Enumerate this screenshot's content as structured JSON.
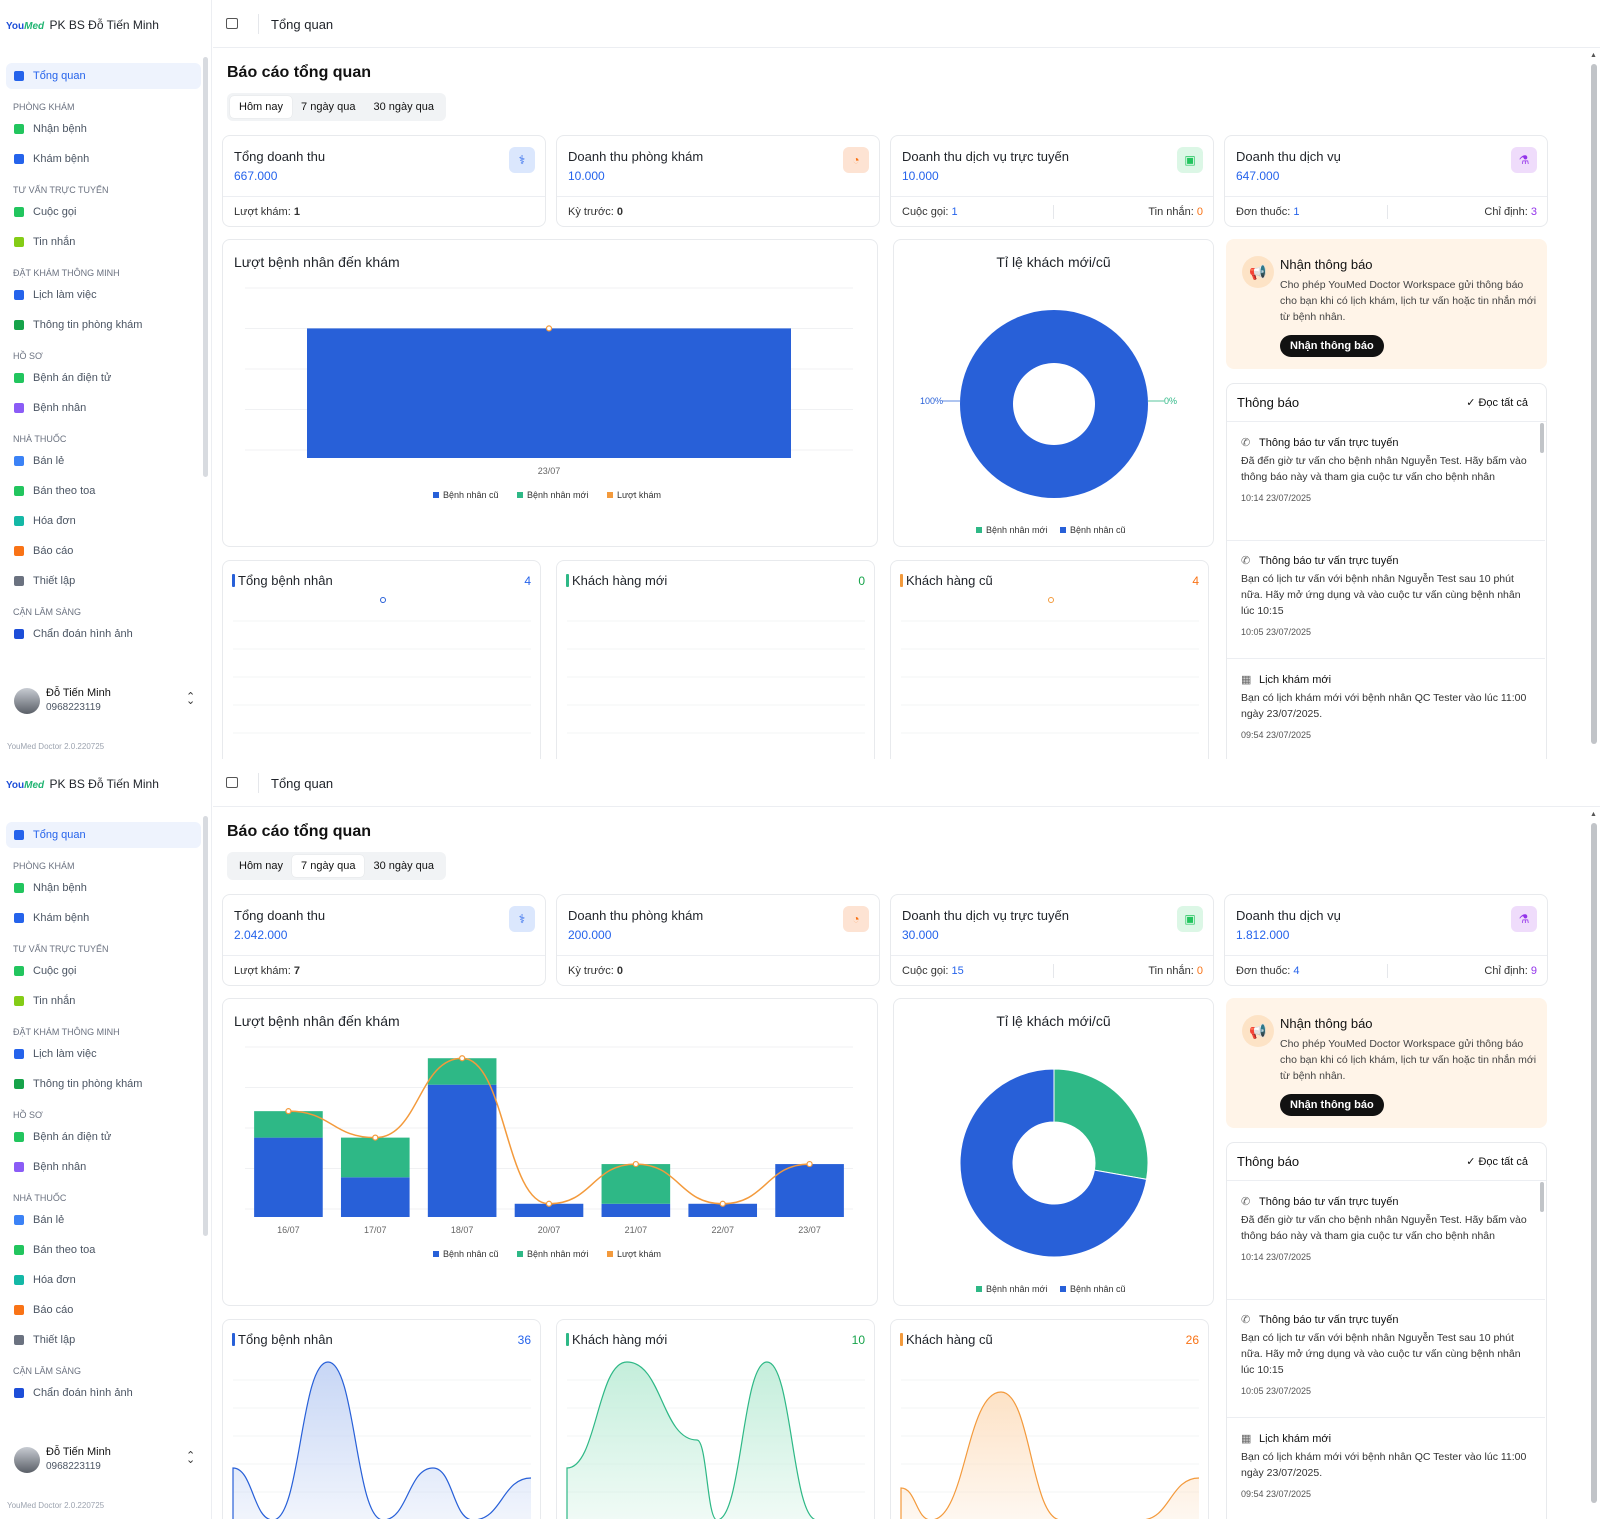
{
  "sidebar": {
    "brand_you": "You",
    "brand_med": "Med",
    "clinic": "PK BS Đỗ Tiến Minh",
    "active_item": "Tổng quan",
    "sections": [
      {
        "title": "",
        "items": [
          {
            "label": "Tổng quan",
            "icon": "dashboard-icon",
            "color": "#2563eb"
          }
        ]
      },
      {
        "title": "PHÒNG KHÁM",
        "items": [
          {
            "label": "Nhận bệnh",
            "icon": "patient-receive-icon",
            "color": "#22c55e"
          },
          {
            "label": "Khám bệnh",
            "icon": "stethoscope-icon",
            "color": "#2563eb"
          }
        ]
      },
      {
        "title": "TƯ VẤN TRỰC TUYẾN",
        "items": [
          {
            "label": "Cuộc gọi",
            "icon": "video-call-icon",
            "color": "#22c55e"
          },
          {
            "label": "Tin nhắn",
            "icon": "message-icon",
            "color": "#84cc16"
          }
        ]
      },
      {
        "title": "ĐẶT KHÁM THÔNG MINH",
        "items": [
          {
            "label": "Lịch làm việc",
            "icon": "calendar-icon",
            "color": "#2563eb"
          },
          {
            "label": "Thông tin phòng khám",
            "icon": "clinic-info-icon",
            "color": "#16a34a"
          }
        ]
      },
      {
        "title": "HỒ SƠ",
        "items": [
          {
            "label": "Bệnh án điện tử",
            "icon": "medical-record-icon",
            "color": "#22c55e"
          },
          {
            "label": "Bệnh nhân",
            "icon": "user-icon",
            "color": "#8b5cf6"
          }
        ]
      },
      {
        "title": "NHÀ THUỐC",
        "items": [
          {
            "label": "Bán lẻ",
            "icon": "pill-icon",
            "color": "#3b82f6"
          },
          {
            "label": "Bán theo toa",
            "icon": "prescription-icon",
            "color": "#22c55e"
          },
          {
            "label": "Hóa đơn",
            "icon": "invoice-icon",
            "color": "#14b8a6"
          },
          {
            "label": "Báo cáo",
            "icon": "report-icon",
            "color": "#f97316"
          },
          {
            "label": "Thiết lập",
            "icon": "gear-icon",
            "color": "#6b7280"
          }
        ]
      },
      {
        "title": "CẬN LÂM SÀNG",
        "items": [
          {
            "label": "Chẩn đoán hình ảnh",
            "icon": "imaging-icon",
            "color": "#1d4ed8"
          }
        ]
      }
    ],
    "user": {
      "name": "Đỗ Tiến Minh",
      "phone": "0968223119"
    },
    "version": "YouMed Doctor 2.0.220725"
  },
  "header": {
    "title": "Tổng quan"
  },
  "page": {
    "title": "Báo cáo tổng quan",
    "tabs": [
      "Hôm nay",
      "7 ngày qua",
      "30 ngày qua"
    ]
  },
  "kpi_labels": {
    "total_revenue": "Tổng doanh thu",
    "clinic_revenue": "Doanh thu phòng khám",
    "online_revenue": "Doanh thu dịch vụ trực tuyến",
    "service_revenue": "Doanh thu dịch vụ",
    "visits": "Lượt khám:",
    "previous": "Kỳ trước:",
    "calls": "Cuộc gọi:",
    "messages": "Tin nhắn:",
    "prescriptions": "Đơn thuốc:",
    "orders": "Chỉ định:"
  },
  "charts": {
    "visits_title": "Lượt bệnh nhân đến khám",
    "ratio_title": "Tỉ lệ khách mới/cũ",
    "legend_old": "Bệnh nhân cũ",
    "legend_new": "Bệnh nhân mới",
    "legend_visits": "Lượt khám"
  },
  "mini_labels": {
    "total_patients": "Tổng bệnh nhân",
    "new_customers": "Khách hàng mới",
    "old_customers": "Khách hàng cũ"
  },
  "colors": {
    "old": "#2860d8",
    "new": "#2eb886",
    "visits": "#f39a3c",
    "accent": "#2563eb"
  },
  "notify_cta": {
    "title": "Nhận thông báo",
    "desc": "Cho phép YouMed Doctor Workspace gửi thông báo cho bạn khi có lịch khám, lịch tư vấn hoặc tin nhắn mới từ bệnh nhân.",
    "button": "Nhận thông báo"
  },
  "notifications": {
    "title": "Thông báo",
    "read_all": "✓ Đọc tất cả",
    "items": [
      {
        "icon": "phone-icon",
        "title": "Thông báo tư vấn trực tuyến",
        "desc": "Đã đến giờ tư vấn cho bệnh nhân Nguyễn Test. Hãy bấm vào thông báo này và tham gia cuộc tư vấn cho bệnh nhân",
        "time": "10:14 23/07/2025"
      },
      {
        "icon": "phone-icon",
        "title": "Thông báo tư vấn trực tuyến",
        "desc": "Bạn có lịch tư vấn với bệnh nhân Nguyễn Test sau 10 phút nữa. Hãy mở ứng dụng và vào cuộc tư vấn cùng bệnh nhân lúc 10:15",
        "time": "10:05 23/07/2025"
      },
      {
        "icon": "calendar-plus-icon",
        "title": "Lịch khám mới",
        "desc": "Bạn có lịch khám mới với bệnh nhân QC Tester vào lúc 11:00 ngày 23/07/2025.",
        "time": "09:54 23/07/2025"
      }
    ]
  },
  "screens": [
    {
      "active_tab": "Hôm nay",
      "kpi": {
        "total_revenue": "667.000",
        "visits": "1",
        "clinic_revenue": "10.000",
        "previous": "0",
        "online_revenue": "10.000",
        "calls": "1",
        "messages": "0",
        "service_revenue": "647.000",
        "prescriptions": "1",
        "orders": "3"
      },
      "mini": {
        "total_patients": "4",
        "new_customers": "0",
        "old_customers": "4"
      },
      "chart_data": [
        {
          "type": "bar",
          "stacked": true,
          "title": "Lượt bệnh nhân đến khám",
          "categories": [
            "23/07"
          ],
          "series": [
            {
              "name": "Bệnh nhân cũ",
              "values": [
                4
              ],
              "color": "#2860d8"
            },
            {
              "name": "Bệnh nhân mới",
              "values": [
                0
              ],
              "color": "#2eb886"
            },
            {
              "name": "Lượt khám",
              "type": "line",
              "values": [
                4
              ],
              "color": "#f39a3c"
            }
          ],
          "ylim": [
            0,
            5
          ],
          "legend": "bottom"
        },
        {
          "type": "pie",
          "donut": true,
          "title": "Tỉ lệ khách mới/cũ",
          "slices": [
            {
              "name": "Bệnh nhân mới",
              "value": 0
            },
            {
              "name": "Bệnh nhân cũ",
              "value": 4
            }
          ],
          "labels": [
            "100%",
            "0%"
          ],
          "legend": "bottom"
        }
      ]
    },
    {
      "active_tab": "7 ngày qua",
      "kpi": {
        "total_revenue": "2.042.000",
        "visits": "7",
        "clinic_revenue": "200.000",
        "previous": "0",
        "online_revenue": "30.000",
        "calls": "15",
        "messages": "0",
        "service_revenue": "1.812.000",
        "prescriptions": "4",
        "orders": "9"
      },
      "mini": {
        "total_patients": "36",
        "new_customers": "10",
        "old_customers": "26"
      },
      "chart_data": [
        {
          "type": "bar",
          "stacked": true,
          "title": "Lượt bệnh nhân đến khám",
          "categories": [
            "16/07",
            "17/07",
            "18/07",
            "20/07",
            "21/07",
            "22/07",
            "23/07"
          ],
          "series": [
            {
              "name": "Bệnh nhân cũ",
              "values": [
                6,
                3,
                10,
                1,
                1,
                1,
                4
              ],
              "color": "#2860d8"
            },
            {
              "name": "Bệnh nhân mới",
              "values": [
                2,
                3,
                2,
                0,
                3,
                0,
                0
              ],
              "color": "#2eb886"
            },
            {
              "name": "Lượt khám",
              "type": "line",
              "values": [
                8,
                6,
                12,
                1,
                4,
                1,
                4
              ],
              "color": "#f39a3c"
            }
          ],
          "ylim": [
            0,
            13
          ],
          "legend": "bottom"
        },
        {
          "type": "pie",
          "donut": true,
          "title": "Tỉ lệ khách mới/cũ",
          "slices": [
            {
              "name": "Bệnh nhân mới",
              "value": 10
            },
            {
              "name": "Bệnh nhân cũ",
              "value": 26
            }
          ],
          "legend": "bottom"
        }
      ]
    }
  ]
}
